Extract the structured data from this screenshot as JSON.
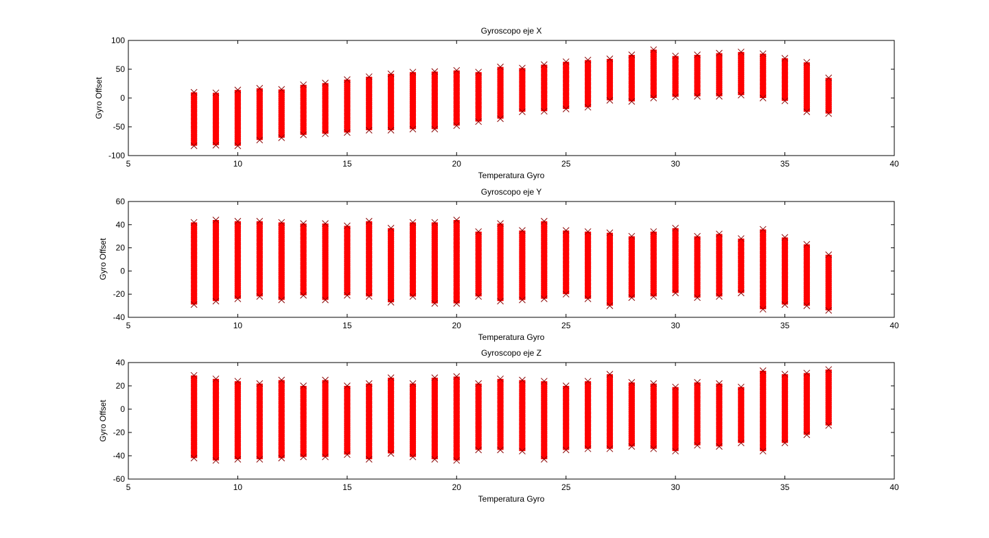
{
  "marker_color": "#ff0000",
  "chart_data": [
    {
      "type": "scatter",
      "marker": "x",
      "title": "Gyroscopo eje X",
      "xlabel": "Temperatura Gyro",
      "ylabel": "Gyro Offset",
      "xlim": [
        5,
        40
      ],
      "ylim": [
        -100,
        100
      ],
      "xticks": [
        5,
        10,
        15,
        20,
        25,
        30,
        35,
        40
      ],
      "yticks": [
        -100,
        -50,
        0,
        50,
        100
      ],
      "x": [
        8,
        9,
        10,
        11,
        12,
        13,
        14,
        15,
        16,
        17,
        18,
        19,
        20,
        21,
        22,
        23,
        24,
        25,
        26,
        27,
        28,
        29,
        30,
        31,
        32,
        33,
        34,
        35,
        36,
        37
      ],
      "y_min": [
        -83,
        -82,
        -83,
        -73,
        -69,
        -64,
        -62,
        -60,
        -56,
        -56,
        -54,
        -54,
        -48,
        -41,
        -36,
        -24,
        -23,
        -19,
        -16,
        -4,
        -6,
        0,
        2,
        3,
        3,
        5,
        0,
        -5,
        -24,
        -27
      ],
      "y_max": [
        10,
        9,
        14,
        17,
        15,
        23,
        26,
        32,
        37,
        42,
        45,
        46,
        48,
        45,
        54,
        52,
        58,
        63,
        66,
        68,
        75,
        84,
        73,
        75,
        78,
        80,
        77,
        69,
        62,
        35
      ],
      "grid": false,
      "legend": "none"
    },
    {
      "type": "scatter",
      "marker": "x",
      "title": "Gyroscopo eje Y",
      "xlabel": "Temperatura Gyro",
      "ylabel": "Gyro Offset",
      "xlim": [
        5,
        40
      ],
      "ylim": [
        -40,
        60
      ],
      "xticks": [
        5,
        10,
        15,
        20,
        25,
        30,
        35,
        40
      ],
      "yticks": [
        -40,
        -20,
        0,
        20,
        40,
        60
      ],
      "x": [
        8,
        9,
        10,
        11,
        12,
        13,
        14,
        15,
        16,
        17,
        18,
        19,
        20,
        21,
        22,
        23,
        24,
        25,
        26,
        27,
        28,
        29,
        30,
        31,
        32,
        33,
        34,
        35,
        36,
        37
      ],
      "y_min": [
        -29,
        -26,
        -24,
        -22,
        -25,
        -21,
        -25,
        -21,
        -22,
        -27,
        -22,
        -28,
        -28,
        -22,
        -26,
        -25,
        -24,
        -20,
        -24,
        -30,
        -23,
        -22,
        -19,
        -23,
        -22,
        -19,
        -33,
        -29,
        -30,
        -34
      ],
      "y_max": [
        42,
        44,
        43,
        43,
        42,
        41,
        41,
        39,
        43,
        37,
        42,
        42,
        44,
        34,
        41,
        35,
        43,
        35,
        34,
        33,
        30,
        34,
        37,
        30,
        32,
        28,
        36,
        29,
        23,
        14
      ],
      "grid": false,
      "legend": "none"
    },
    {
      "type": "scatter",
      "marker": "x",
      "title": "Gyroscopo eje Z",
      "xlabel": "Temperatura Gyro",
      "ylabel": "Gyro Offset",
      "xlim": [
        5,
        40
      ],
      "ylim": [
        -60,
        40
      ],
      "xticks": [
        5,
        10,
        15,
        20,
        25,
        30,
        35,
        40
      ],
      "yticks": [
        -60,
        -40,
        -20,
        0,
        20,
        40
      ],
      "x": [
        8,
        9,
        10,
        11,
        12,
        13,
        14,
        15,
        16,
        17,
        18,
        19,
        20,
        21,
        22,
        23,
        24,
        25,
        26,
        27,
        28,
        29,
        30,
        31,
        32,
        33,
        34,
        35,
        36,
        37
      ],
      "y_min": [
        -42,
        -44,
        -43,
        -43,
        -42,
        -41,
        -41,
        -39,
        -43,
        -38,
        -41,
        -43,
        -44,
        -35,
        -35,
        -36,
        -43,
        -35,
        -34,
        -34,
        -32,
        -34,
        -36,
        -31,
        -32,
        -29,
        -36,
        -29,
        -22,
        -14
      ],
      "y_max": [
        29,
        26,
        24,
        22,
        25,
        20,
        25,
        20,
        22,
        27,
        22,
        27,
        28,
        22,
        26,
        25,
        24,
        20,
        24,
        30,
        23,
        22,
        19,
        23,
        22,
        19,
        33,
        30,
        31,
        34
      ],
      "grid": false,
      "legend": "none"
    }
  ]
}
